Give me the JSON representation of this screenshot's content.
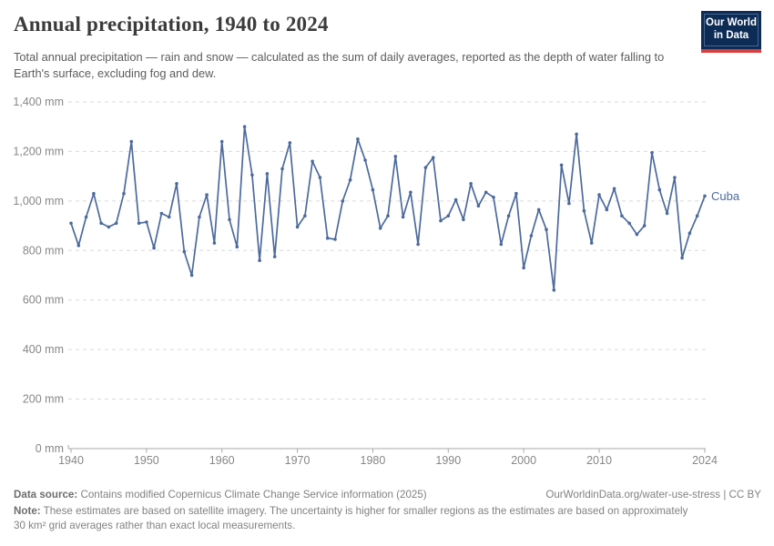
{
  "header": {
    "title": "Annual precipitation, 1940 to 2024",
    "subtitle": "Total annual precipitation — rain and snow — calculated as the sum of daily averages, reported as the depth of water falling to Earth's surface, excluding fog and dew.",
    "logo_line1": "Our World",
    "logo_line2": "in Data"
  },
  "chart_data": {
    "type": "line",
    "title": "Annual precipitation, 1940 to 2024",
    "xlabel": "",
    "ylabel": "",
    "unit": "mm",
    "grid": "horizontal-dashed",
    "legend_position": "end-of-line",
    "xlim": [
      1940,
      2024
    ],
    "ylim": [
      0,
      1400
    ],
    "x_ticks": [
      1940,
      1950,
      1960,
      1970,
      1980,
      1990,
      2000,
      2010,
      2024
    ],
    "y_ticks": [
      {
        "value": 0,
        "label": "0 mm"
      },
      {
        "value": 200,
        "label": "200 mm"
      },
      {
        "value": 400,
        "label": "400 mm"
      },
      {
        "value": 600,
        "label": "600 mm"
      },
      {
        "value": 800,
        "label": "800 mm"
      },
      {
        "value": 1000,
        "label": "1,000 mm"
      },
      {
        "value": 1200,
        "label": "1,200 mm"
      },
      {
        "value": 1400,
        "label": "1,400 mm"
      }
    ],
    "series": [
      {
        "name": "Cuba",
        "color": "#4c6a9c",
        "years": [
          1940,
          1941,
          1942,
          1943,
          1944,
          1945,
          1946,
          1947,
          1948,
          1949,
          1950,
          1951,
          1952,
          1953,
          1954,
          1955,
          1956,
          1957,
          1958,
          1959,
          1960,
          1961,
          1962,
          1963,
          1964,
          1965,
          1966,
          1967,
          1968,
          1969,
          1970,
          1971,
          1972,
          1973,
          1974,
          1975,
          1976,
          1977,
          1978,
          1979,
          1980,
          1981,
          1982,
          1983,
          1984,
          1985,
          1986,
          1987,
          1988,
          1989,
          1990,
          1991,
          1992,
          1993,
          1994,
          1995,
          1996,
          1997,
          1998,
          1999,
          2000,
          2001,
          2002,
          2003,
          2004,
          2005,
          2006,
          2007,
          2008,
          2009,
          2010,
          2011,
          2012,
          2013,
          2014,
          2015,
          2016,
          2017,
          2018,
          2019,
          2020,
          2021,
          2022,
          2023,
          2024
        ],
        "values": [
          910,
          820,
          935,
          1030,
          910,
          895,
          910,
          1030,
          1240,
          910,
          915,
          810,
          950,
          935,
          1070,
          795,
          700,
          935,
          1025,
          830,
          1240,
          925,
          815,
          1300,
          1105,
          760,
          1110,
          775,
          1130,
          1235,
          895,
          940,
          1160,
          1095,
          850,
          845,
          1000,
          1085,
          1250,
          1165,
          1045,
          890,
          940,
          1180,
          935,
          1035,
          825,
          1135,
          1175,
          920,
          940,
          1005,
          925,
          1070,
          980,
          1035,
          1015,
          825,
          940,
          1030,
          730,
          860,
          965,
          885,
          640,
          1145,
          990,
          1270,
          960,
          830,
          1025,
          965,
          1050,
          940,
          910,
          865,
          900,
          1195,
          1045,
          950,
          1095,
          770,
          870,
          940,
          1020
        ]
      }
    ]
  },
  "footer": {
    "datasource_label": "Data source:",
    "datasource_text": " Contains modified Copernicus Climate Change Service information (2025)",
    "link": "OurWorldinData.org/water-use-stress | CC BY",
    "note_label": "Note:",
    "note_text": " These estimates are based on satellite imagery. The uncertainty is higher for smaller regions as the estimates are based on approximately 30 km² grid averages rather than exact local measurements."
  }
}
